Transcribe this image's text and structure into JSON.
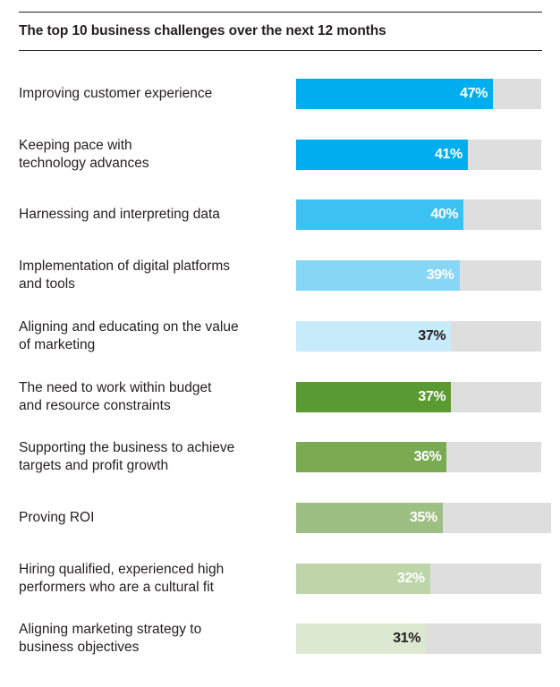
{
  "chart_data": {
    "type": "bar",
    "orientation": "horizontal",
    "title": "The top 10 business challenges over the next 12 months",
    "categories": [
      "Improving customer experience",
      "Keeping pace with\ntechnology advances",
      "Harnessing and interpreting data",
      "Implementation of digital platforms\nand tools",
      "Aligning and educating on the value\nof marketing",
      "The need to work within budget\nand resource constraints",
      "Supporting the business to achieve\ntargets and profit growth",
      "Proving ROI",
      "Hiring qualified, experienced high\nperformers who are a cultural fit",
      "Aligning marketing strategy to\nbusiness objectives"
    ],
    "values": [
      47,
      41,
      40,
      39,
      37,
      37,
      36,
      35,
      32,
      31
    ],
    "value_labels": [
      "47%",
      "41%",
      "40%",
      "39%",
      "37%",
      "37%",
      "36%",
      "35%",
      "32%",
      "31%"
    ],
    "xlim": [
      0,
      100
    ],
    "grid": false,
    "legend": "none",
    "bar_colors": [
      "#00aeef",
      "#00aeef",
      "#3cc1f3",
      "#87d6f6",
      "#c8ebfb",
      "#5a9a32",
      "#7aab52",
      "#9ebf83",
      "#bdd5a8",
      "#dce9d0"
    ],
    "label_colors": [
      "#ffffff",
      "#ffffff",
      "#ffffff",
      "#ffffff",
      "#231f20",
      "#ffffff",
      "#ffffff",
      "#ffffff",
      "#ffffff",
      "#231f20"
    ],
    "track_color": "#dedede"
  }
}
